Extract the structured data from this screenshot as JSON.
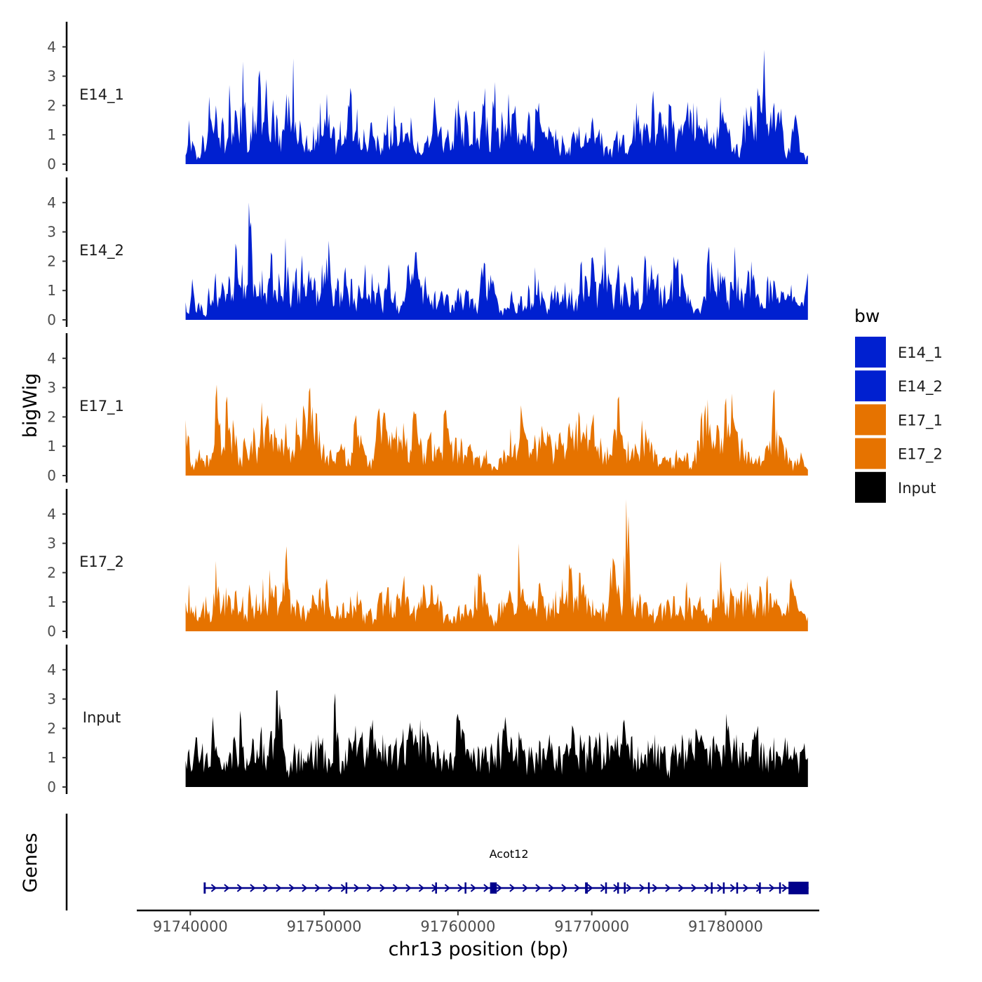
{
  "chart_data": {
    "type": "area",
    "title": "",
    "xlabel": "chr13 position (bp)",
    "ylabel": "bigWig",
    "gene_panel_label": "Genes",
    "xlim": [
      91736000,
      91787000
    ],
    "ylim": [
      0,
      4.6
    ],
    "y_ticks": [
      0,
      1,
      2,
      3,
      4
    ],
    "x_ticks": [
      91740000,
      91750000,
      91760000,
      91770000,
      91780000
    ],
    "x_tick_labels": [
      "91740000",
      "91750000",
      "91760000",
      "91770000",
      "91780000"
    ],
    "data_range": [
      91739650,
      91786150
    ],
    "legend": {
      "title": "bw",
      "position": "right",
      "entries": [
        {
          "label": "E14_1",
          "color": "#0020D0"
        },
        {
          "label": "E14_2",
          "color": "#0020D0"
        },
        {
          "label": "E17_1",
          "color": "#E67300"
        },
        {
          "label": "E17_2",
          "color": "#E67300"
        },
        {
          "label": "Input",
          "color": "#000000"
        }
      ]
    },
    "series": [
      {
        "name": "E14_1",
        "color": "#0020D0",
        "seed": 11,
        "values": [
          0.3,
          1.5,
          0.8,
          0.4,
          0.2,
          1.0,
          0.5,
          2.3,
          1.2,
          2.0,
          0.9,
          1.6,
          0.6,
          2.7,
          1.1,
          1.8,
          0.7,
          3.5,
          1.3,
          0.5,
          2.0,
          1.0,
          3.2,
          1.4,
          2.9,
          0.8,
          2.2,
          1.7,
          1.0,
          1.2,
          2.4,
          1.6,
          3.6,
          0.9,
          1.5,
          0.6,
          1.0,
          0.4,
          1.3,
          0.7,
          2.1,
          1.0,
          2.4,
          0.9,
          1.3,
          0.6,
          1.5,
          0.7,
          1.2,
          2.6,
          0.8,
          1.9,
          0.5,
          1.2,
          0.4,
          1.4,
          0.9,
          1.0,
          0.3,
          1.1,
          1.7,
          1.2,
          2.0,
          0.6,
          1.4,
          0.8,
          1.1,
          1.6,
          0.5,
          0.8,
          0.3,
          0.7,
          1.0,
          0.8,
          2.3,
          0.9,
          1.3,
          0.7,
          1.2,
          0.5,
          1.5,
          2.2,
          0.8,
          1.6,
          1.3,
          0.7,
          1.8,
          0.8,
          1.4,
          2.6,
          1.0,
          1.2,
          2.8,
          1.2,
          1.8,
          1.4,
          2.4,
          1.7,
          2.0,
          1.1,
          0.8,
          1.0,
          1.8,
          0.8,
          1.9,
          2.1,
          1.1,
          0.9,
          1.3,
          0.9,
          1.2,
          0.5,
          1.0,
          0.3,
          0.6,
          1.0,
          0.7,
          1.3,
          0.6,
          1.1,
          0.9,
          1.6,
          0.9,
          1.2,
          0.7,
          0.6,
          0.5,
          0.5,
          1.0,
          0.9,
          1.0,
          0.4,
          0.6,
          1.0,
          2.1,
          1.0,
          1.1,
          1.4,
          0.7,
          2.5,
          1.0,
          1.8,
          1.4,
          1.2,
          2.0,
          1.5,
          0.8,
          1.1,
          1.3,
          1.8,
          1.9,
          2.1,
          2.0,
          1.2,
          0.9,
          1.6,
          0.8,
          1.1,
          1.3,
          2.3,
          1.5,
          1.2,
          0.9,
          0.6,
          0.7,
          0.5,
          1.7,
          1.5,
          2.0,
          0.8,
          2.6,
          1.8,
          3.9,
          1.4,
          1.8,
          2.1,
          1.7,
          1.9,
          0.5,
          0.4,
          0.8,
          1.5,
          1.2,
          0.4,
          0.3,
          0.3
        ]
      },
      {
        "name": "E14_2",
        "color": "#0020D0",
        "seed": 23,
        "values": [
          0.6,
          0.2,
          1.4,
          0.3,
          0.6,
          0.4,
          0.1,
          1.1,
          0.7,
          1.6,
          0.8,
          1.3,
          0.6,
          1.5,
          0.9,
          2.6,
          1.2,
          1.9,
          0.7,
          4.0,
          2.2,
          1.1,
          0.8,
          1.7,
          0.9,
          1.4,
          2.2,
          1.0,
          1.6,
          0.8,
          2.8,
          1.4,
          0.9,
          1.6,
          1.1,
          2.2,
          0.8,
          1.7,
          1.0,
          1.3,
          0.6,
          1.9,
          1.2,
          2.7,
          0.9,
          1.1,
          1.3,
          0.6,
          1.8,
          0.8,
          1.4,
          0.5,
          1.2,
          0.7,
          1.9,
          0.9,
          1.6,
          0.5,
          1.3,
          0.4,
          1.1,
          1.9,
          0.6,
          1.0,
          0.2,
          0.5,
          0.8,
          1.9,
          1.6,
          2.3,
          1.4,
          1.2,
          1.5,
          0.9,
          0.7,
          1.0,
          0.6,
          1.0,
          0.7,
          0.8,
          0.5,
          0.7,
          1.1,
          0.6,
          0.9,
          1.0,
          0.7,
          0.6,
          0.5,
          1.8,
          1.9,
          1.4,
          1.2,
          0.9,
          0.5,
          0.3,
          0.4,
          0.4,
          1.0,
          0.3,
          0.6,
          0.8,
          0.5,
          1.2,
          0.6,
          1.8,
          1.4,
          1.0,
          0.6,
          0.4,
          1.0,
          1.2,
          0.9,
          0.6,
          1.3,
          0.7,
          1.1,
          0.5,
          0.8,
          2.0,
          1.5,
          0.8,
          2.1,
          1.3,
          0.9,
          1.4,
          2.5,
          1.6,
          1.2,
          0.8,
          1.9,
          0.9,
          1.3,
          0.6,
          1.5,
          0.8,
          1.1,
          0.5,
          2.2,
          1.5,
          1.9,
          1.0,
          1.6,
          0.8,
          1.2,
          0.7,
          1.4,
          1.9,
          2.1,
          1.6,
          1.0,
          0.9,
          0.5,
          0.3,
          0.4,
          0.4,
          0.8,
          2.3,
          2.0,
          1.0,
          1.8,
          1.2,
          1.5,
          0.7,
          1.3,
          2.5,
          1.5,
          1.1,
          0.9,
          1.7,
          2.0,
          1.3,
          0.9,
          0.6,
          0.4,
          1.5,
          1.1,
          1.3,
          0.8,
          1.0,
          0.7,
          0.9,
          1.2,
          0.8,
          0.5,
          0.6,
          0.8,
          1.6
        ]
      },
      {
        "name": "E17_1",
        "color": "#E67300",
        "seed": 37,
        "values": [
          1.9,
          1.3,
          0.4,
          0.6,
          0.9,
          0.5,
          0.7,
          0.6,
          0.8,
          3.1,
          1.8,
          1.0,
          2.7,
          1.4,
          1.6,
          0.9,
          0.5,
          1.3,
          0.6,
          1.2,
          1.4,
          1.0,
          2.5,
          1.6,
          1.9,
          1.4,
          1.3,
          1.1,
          1.2,
          1.8,
          1.0,
          0.9,
          2.0,
          1.3,
          2.4,
          1.2,
          3.0,
          1.5,
          2.1,
          0.9,
          1.1,
          0.7,
          0.9,
          0.5,
          0.8,
          1.1,
          1.0,
          0.6,
          0.8,
          1.9,
          1.4,
          1.1,
          0.7,
          0.4,
          0.6,
          1.2,
          2.3,
          1.9,
          1.6,
          1.4,
          1.2,
          1.7,
          1.1,
          1.8,
          1.3,
          0.9,
          2.2,
          1.5,
          1.3,
          0.8,
          1.2,
          1.5,
          1.1,
          0.9,
          0.8,
          2.2,
          1.6,
          1.2,
          1.3,
          0.9,
          1.1,
          0.7,
          1.0,
          0.8,
          0.6,
          0.7,
          0.5,
          0.9,
          0.4,
          0.3,
          0.2,
          0.6,
          0.9,
          0.7,
          1.6,
          1.0,
          0.8,
          2.4,
          1.5,
          1.2,
          0.7,
          1.4,
          1.0,
          1.7,
          1.1,
          1.3,
          0.9,
          1.2,
          1.4,
          1.0,
          0.8,
          1.8,
          1.6,
          1.9,
          2.0,
          1.5,
          1.8,
          1.2,
          2.1,
          0.8,
          1.3,
          0.6,
          1.0,
          0.7,
          1.6,
          2.6,
          1.4,
          0.9,
          1.2,
          0.8,
          1.1,
          0.7,
          1.9,
          1.6,
          1.3,
          1.0,
          0.7,
          0.4,
          0.6,
          0.5,
          0.6,
          0.4,
          0.9,
          0.6,
          0.5,
          0.8,
          0.3,
          0.5,
          1.2,
          1.9,
          2.0,
          2.6,
          1.3,
          0.9,
          1.7,
          1.3,
          2.4,
          1.8,
          2.8,
          1.6,
          1.0,
          1.3,
          0.9,
          0.8,
          0.4,
          0.6,
          0.7,
          0.5,
          1.0,
          1.2,
          2.8,
          1.6,
          1.3,
          1.0,
          0.8,
          0.5,
          0.4,
          0.6,
          0.8,
          0.3,
          0.2
        ]
      },
      {
        "name": "E17_2",
        "color": "#E67300",
        "seed": 53,
        "values": [
          1.0,
          1.6,
          0.6,
          0.9,
          0.5,
          0.8,
          1.2,
          0.7,
          0.6,
          2.4,
          1.3,
          0.9,
          1.5,
          1.2,
          0.8,
          1.4,
          0.7,
          1.2,
          0.5,
          1.6,
          0.9,
          1.3,
          1.0,
          1.8,
          0.8,
          2.1,
          1.2,
          1.5,
          0.9,
          1.7,
          2.9,
          1.4,
          0.8,
          1.1,
          0.6,
          0.9,
          0.5,
          0.8,
          1.2,
          0.9,
          1.5,
          1.0,
          1.8,
          0.7,
          0.5,
          0.9,
          0.6,
          1.0,
          0.7,
          1.2,
          0.9,
          1.4,
          1.1,
          0.6,
          0.5,
          0.8,
          0.4,
          0.9,
          1.3,
          1.0,
          1.5,
          1.1,
          0.7,
          1.3,
          0.8,
          1.9,
          1.2,
          0.6,
          0.9,
          0.8,
          1.2,
          1.5,
          0.8,
          1.6,
          0.9,
          1.3,
          1.0,
          0.4,
          0.6,
          0.3,
          0.5,
          0.8,
          0.6,
          0.9,
          0.5,
          0.7,
          1.6,
          2.0,
          1.5,
          1.3,
          0.8,
          0.5,
          0.4,
          0.9,
          1.1,
          0.8,
          1.2,
          1.0,
          0.6,
          3.0,
          1.4,
          1.0,
          0.7,
          0.9,
          0.8,
          1.6,
          1.2,
          0.9,
          1.0,
          0.7,
          1.4,
          0.6,
          1.8,
          1.1,
          2.3,
          1.6,
          1.0,
          2.0,
          1.5,
          1.3,
          0.9,
          1.1,
          0.8,
          0.6,
          1.0,
          0.7,
          1.4,
          2.5,
          1.6,
          1.3,
          0.9,
          4.5,
          2.6,
          1.2,
          0.8,
          1.3,
          0.9,
          1.0,
          0.6,
          0.8,
          0.5,
          0.9,
          0.7,
          1.0,
          0.8,
          1.2,
          0.6,
          0.9,
          0.5,
          1.7,
          1.1,
          0.9,
          0.7,
          1.2,
          0.8,
          0.6,
          0.5,
          1.1,
          0.8,
          2.4,
          1.4,
          1.0,
          1.5,
          1.2,
          0.9,
          1.3,
          1.0,
          1.7,
          1.2,
          0.8,
          1.1,
          1.5,
          1.0,
          1.9,
          1.3,
          1.1,
          0.9,
          0.7,
          0.6,
          1.0,
          1.8,
          1.2,
          0.8,
          0.7,
          0.6,
          0.5
        ]
      },
      {
        "name": "Input",
        "color": "#000000",
        "seed": 71,
        "values": [
          0.9,
          1.3,
          0.6,
          1.7,
          0.8,
          1.5,
          1.1,
          0.7,
          2.4,
          1.4,
          1.0,
          0.6,
          0.9,
          1.2,
          1.6,
          1.1,
          2.6,
          1.4,
          1.0,
          0.9,
          1.6,
          1.3,
          1.8,
          1.5,
          1.1,
          1.9,
          1.6,
          3.3,
          2.3,
          1.2,
          0.6,
          0.9,
          1.5,
          1.1,
          1.3,
          0.8,
          1.2,
          1.6,
          1.1,
          1.8,
          1.4,
          1.3,
          1.0,
          0.8,
          3.2,
          1.6,
          0.9,
          1.3,
          1.7,
          1.2,
          2.1,
          1.5,
          1.9,
          1.0,
          1.6,
          2.3,
          1.4,
          1.2,
          1.8,
          1.0,
          1.4,
          1.1,
          1.7,
          1.3,
          2.0,
          1.6,
          2.2,
          1.4,
          1.5,
          2.3,
          1.7,
          1.9,
          1.4,
          1.2,
          1.6,
          1.0,
          1.3,
          0.9,
          1.2,
          1.0,
          2.5,
          1.6,
          1.8,
          1.3,
          1.2,
          1.1,
          1.4,
          1.0,
          1.3,
          0.9,
          1.5,
          1.1,
          1.9,
          1.4,
          2.4,
          1.2,
          1.6,
          1.1,
          1.9,
          1.3,
          1.0,
          1.4,
          1.1,
          1.2,
          1.6,
          1.3,
          0.9,
          1.8,
          1.2,
          1.0,
          1.4,
          1.1,
          1.5,
          1.3,
          2.0,
          1.1,
          1.8,
          1.4,
          1.2,
          1.7,
          1.3,
          1.5,
          1.6,
          1.2,
          1.9,
          1.4,
          1.2,
          1.8,
          1.5,
          2.3,
          1.5,
          1.7,
          1.0,
          1.4,
          1.2,
          1.1,
          1.6,
          1.3,
          1.8,
          1.5,
          1.2,
          1.4,
          0.6,
          1.2,
          1.5,
          1.1,
          1.8,
          1.3,
          1.7,
          1.2,
          2.0,
          1.5,
          1.6,
          1.3,
          1.1,
          1.6,
          1.5,
          1.2,
          1.4,
          2.5,
          1.6,
          1.3,
          1.8,
          1.4,
          1.5,
          1.2,
          1.0,
          1.6,
          1.9,
          1.3,
          1.5,
          1.1,
          1.4,
          1.7,
          1.2,
          1.0,
          1.3,
          1.6,
          1.1,
          1.4,
          0.9,
          1.2,
          1.5,
          1.0
        ]
      }
    ],
    "genes": [
      {
        "name": "Acot12",
        "strand": "+",
        "start": 91741000,
        "end": 91786200,
        "exons": [
          [
            91741000,
            91741150
          ],
          [
            91751600,
            91751700
          ],
          [
            91758300,
            91758400
          ],
          [
            91760500,
            91760600
          ],
          [
            91762400,
            91762900
          ],
          [
            91769500,
            91769700
          ],
          [
            91771000,
            91771100
          ],
          [
            91771900,
            91772000
          ],
          [
            91772400,
            91772500
          ],
          [
            91774200,
            91774300
          ],
          [
            91778900,
            91779000
          ],
          [
            91779800,
            91779900
          ],
          [
            91780800,
            91780900
          ],
          [
            91782500,
            91782600
          ],
          [
            91784000,
            91784100
          ],
          [
            91784700,
            91786200
          ]
        ]
      }
    ]
  }
}
